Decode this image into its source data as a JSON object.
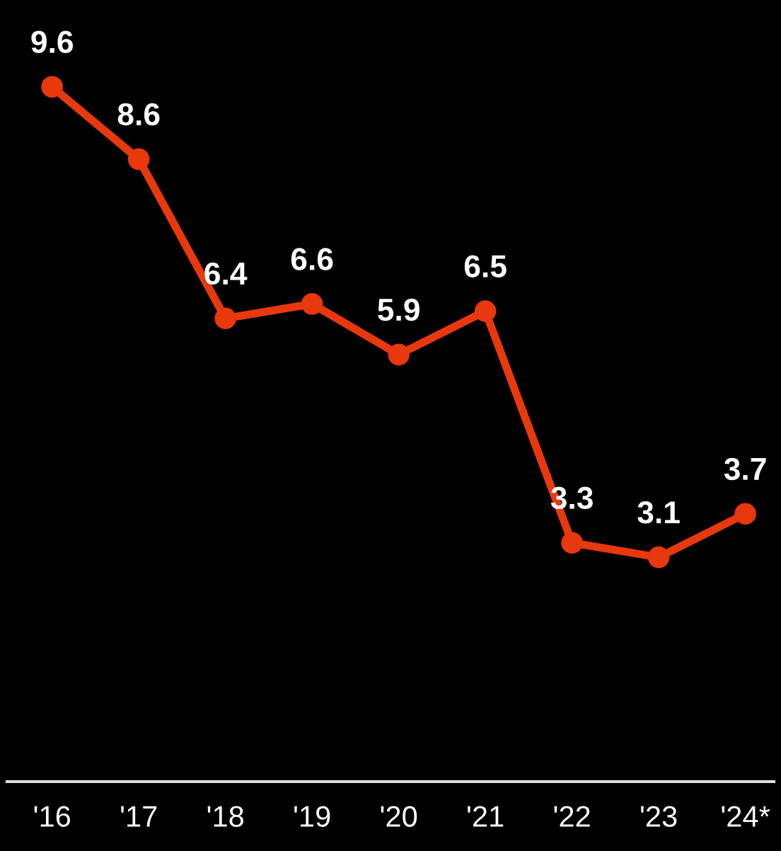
{
  "chart_data": {
    "type": "line",
    "categories": [
      "'16",
      "'17",
      "'18",
      "'19",
      "'20",
      "'21",
      "'22",
      "'23",
      "'24*"
    ],
    "series": [
      {
        "color": "#e8380d",
        "values": [
          9.6,
          8.6,
          6.4,
          6.6,
          5.9,
          6.5,
          3.3,
          3.1,
          3.7
        ]
      }
    ],
    "ylim": [
      0,
      10.8
    ],
    "tick_labels": "x",
    "data_labels": true,
    "marker": "circle",
    "line_style": "solid",
    "grid": false,
    "legend": false
  }
}
